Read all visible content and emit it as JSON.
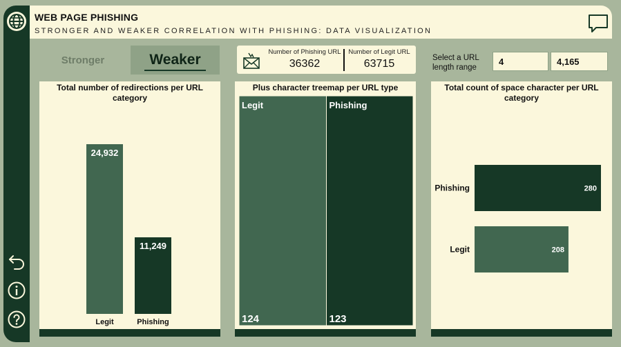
{
  "header": {
    "title": "WEB PAGE PHISHING",
    "subtitle": "STRONGER AND WEAKER CORRELATION WITH PHISHING: DATA VISUALIZATION"
  },
  "toggle": {
    "stronger_label": "Stronger",
    "weaker_label": "Weaker",
    "selected": "Weaker"
  },
  "kpis": {
    "phishing_label": "Number of Phishing URL",
    "phishing_value": "36362",
    "legit_label": "Number of Legit URL",
    "legit_value": "63715"
  },
  "range": {
    "label_line1": "Select a URL",
    "label_line2": "length range",
    "min": "4",
    "max": "4,165"
  },
  "icons": [
    "globe-icon",
    "chat-icon",
    "back-icon",
    "info-icon",
    "help-icon",
    "mail-icon"
  ],
  "colors": {
    "dark_green": "#163826",
    "mid_green": "#416750",
    "cream": "#fbf7dc",
    "sage": "#a8b69c"
  },
  "chart_data": [
    {
      "type": "bar",
      "title": "Total number of redirections per URL category",
      "categories": [
        "Legit",
        "Phishing"
      ],
      "values": [
        24932,
        11249
      ],
      "value_labels": [
        "24,932",
        "11,249"
      ],
      "colors": [
        "#416750",
        "#163826"
      ]
    },
    {
      "type": "treemap",
      "title": "Plus character treemap per URL type",
      "categories": [
        "Legit",
        "Phishing"
      ],
      "values": [
        124,
        123
      ],
      "colors": [
        "#416750",
        "#163826"
      ]
    },
    {
      "type": "bar",
      "orientation": "horizontal",
      "title": "Total count of space character per URL category",
      "categories": [
        "Phishing",
        "Legit"
      ],
      "values": [
        280,
        208
      ],
      "colors": [
        "#163826",
        "#416750"
      ]
    }
  ]
}
